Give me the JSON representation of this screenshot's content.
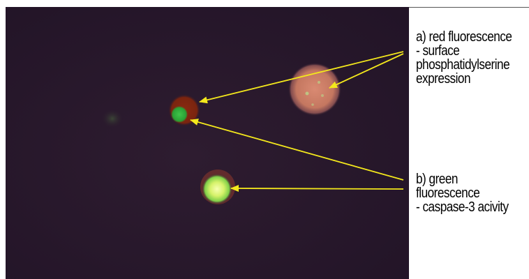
{
  "figure": {
    "background_color": "#2a1a2c",
    "arrow_color": "#f4e81c"
  },
  "annotation_a": {
    "lines": [
      "a) red fluorescence",
      "- surface",
      "phosphatidylserine",
      "expression"
    ]
  },
  "annotation_b": {
    "lines": [
      "b) green",
      "fluorescence",
      "- caspase-3 acivity"
    ]
  },
  "cells": [
    {
      "name": "large-red-cell",
      "color": "red"
    },
    {
      "name": "red-green-cell",
      "color": "red-green"
    },
    {
      "name": "bright-green-cell",
      "color": "green-yellow"
    },
    {
      "name": "faint-green-cell",
      "color": "faint-green"
    }
  ]
}
